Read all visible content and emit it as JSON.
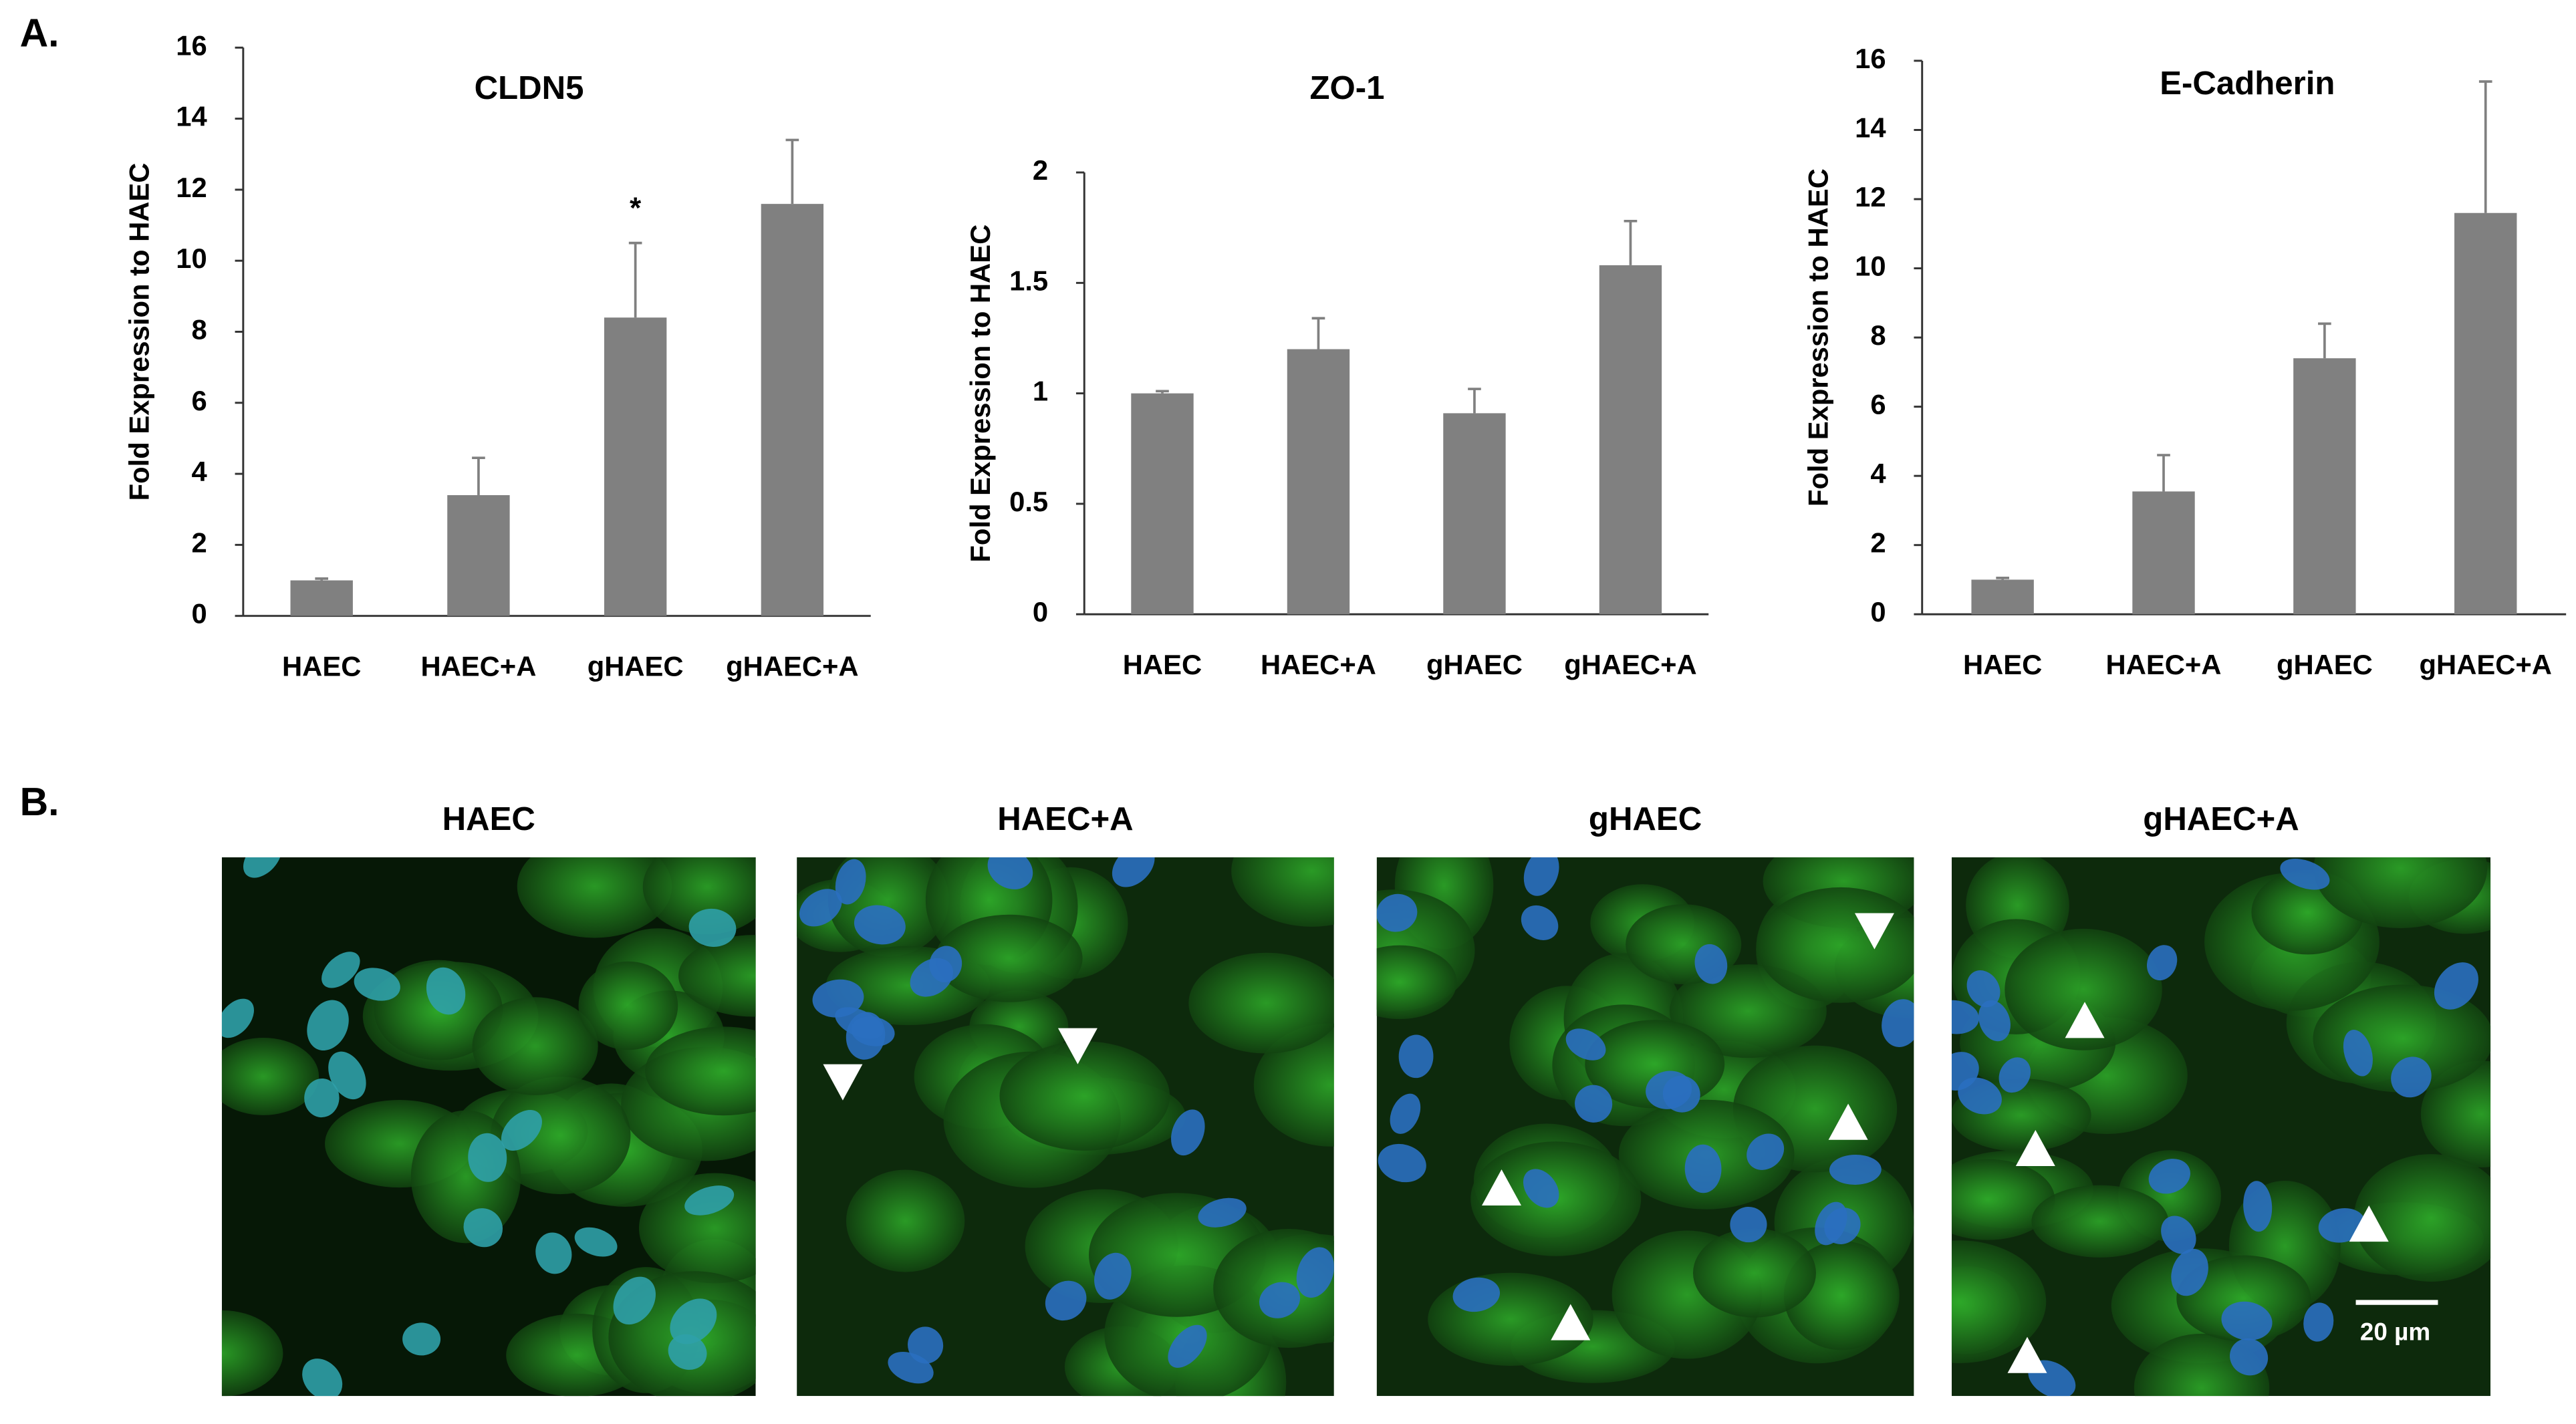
{
  "panel_a_label": "A.",
  "panel_b_label": "B.",
  "chart_data": [
    {
      "type": "bar",
      "title": "CLDN5",
      "y_label": "Fold Expression to HAEC",
      "categories": [
        "HAEC",
        "HAEC+A",
        "gHAEC",
        "gHAEC+A"
      ],
      "values": [
        1,
        3.4,
        8.4,
        11.6
      ],
      "errors": [
        0.05,
        1.05,
        2.1,
        1.8
      ],
      "annotations": [
        {
          "category": 2,
          "text": "*"
        }
      ],
      "color": "#808080",
      "ylim": [
        0,
        16
      ],
      "yticks": [
        0,
        2,
        4,
        6,
        8,
        10,
        12,
        14,
        16
      ]
    },
    {
      "type": "bar",
      "title": "ZO-1",
      "y_label": "Fold Expression to HAEC",
      "categories": [
        "HAEC",
        "HAEC+A",
        "gHAEC",
        "gHAEC+A"
      ],
      "values": [
        1,
        1.2,
        0.91,
        1.58
      ],
      "errors": [
        0.01,
        0.14,
        0.11,
        0.2
      ],
      "color": "#808080",
      "ylim": [
        0,
        2
      ],
      "yticks": [
        0,
        0.5,
        1,
        1.5,
        2
      ]
    },
    {
      "type": "bar",
      "title": "E-Cadherin",
      "y_label": "Fold Expression to HAEC",
      "categories": [
        "HAEC",
        "HAEC+A",
        "gHAEC",
        "gHAEC+A"
      ],
      "values": [
        1,
        3.55,
        7.4,
        11.6
      ],
      "errors": [
        0.05,
        1.05,
        1.0,
        3.8
      ],
      "color": "#808080",
      "ylim": [
        0,
        16
      ],
      "yticks": [
        0,
        2,
        4,
        6,
        8,
        10,
        12,
        14,
        16
      ]
    }
  ],
  "images": [
    {
      "title": "HAEC"
    },
    {
      "title": "HAEC+A"
    },
    {
      "title": "gHAEC"
    },
    {
      "title": "gHAEC+A"
    }
  ],
  "scale_bar_label": "20 µm"
}
